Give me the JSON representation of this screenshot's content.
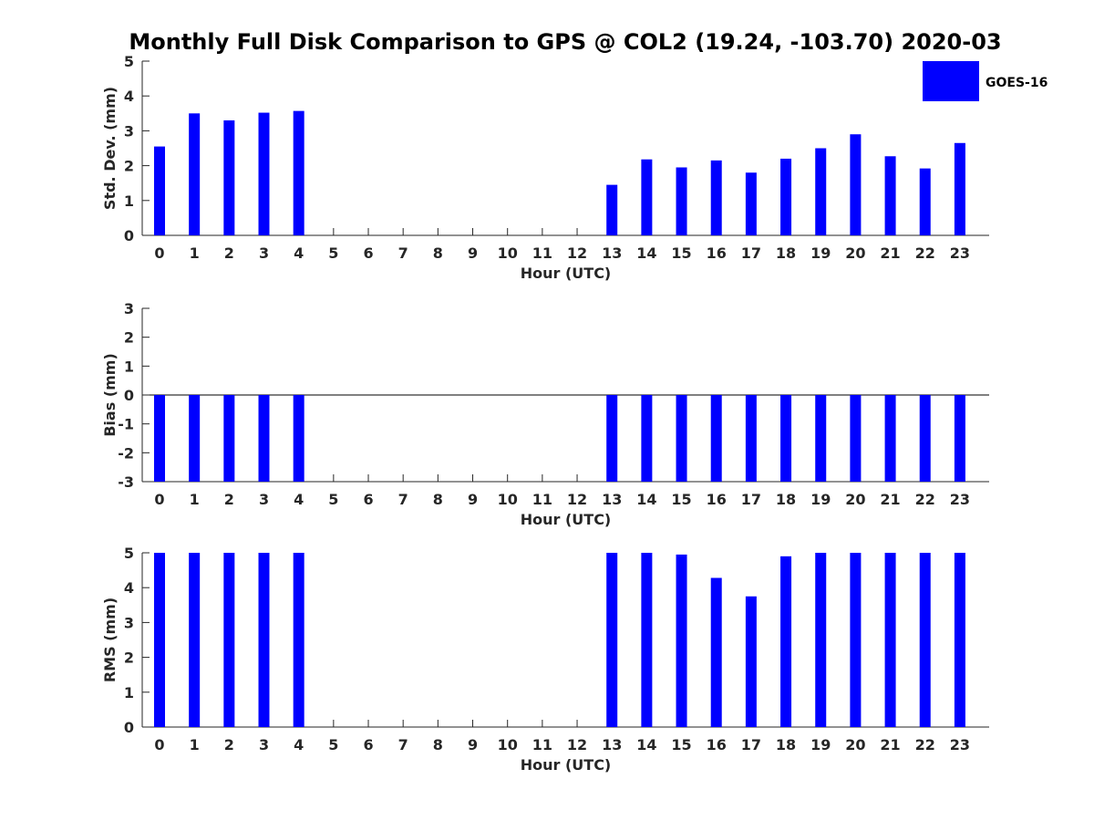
{
  "figure": {
    "title": "Monthly Full Disk Comparison to GPS @ COL2 (19.24, -103.70) 2020-03"
  },
  "legend": {
    "label": "GOES-16",
    "color": "#0000ff",
    "placement": "top-right"
  },
  "chart_data": [
    {
      "type": "bar",
      "name": "std-dev",
      "xlabel": "Hour (UTC)",
      "ylabel": "Std. Dev. (mm)",
      "ylim": [
        0,
        5
      ],
      "yticks": [
        0,
        1,
        2,
        3,
        4,
        5
      ],
      "categories": [
        "0",
        "1",
        "2",
        "3",
        "4",
        "5",
        "6",
        "7",
        "8",
        "9",
        "10",
        "11",
        "12",
        "13",
        "14",
        "15",
        "16",
        "17",
        "18",
        "19",
        "20",
        "21",
        "22",
        "23"
      ],
      "series": [
        {
          "name": "GOES-16",
          "values": [
            2.55,
            3.5,
            3.3,
            3.52,
            3.57,
            null,
            null,
            null,
            null,
            null,
            null,
            null,
            null,
            1.45,
            2.18,
            1.95,
            2.15,
            1.8,
            2.2,
            2.5,
            2.9,
            2.27,
            1.92,
            2.65
          ]
        }
      ]
    },
    {
      "type": "bar",
      "name": "bias",
      "xlabel": "Hour (UTC)",
      "ylabel": "Bias (mm)",
      "ylim": [
        -3,
        3
      ],
      "yticks": [
        -3,
        -2,
        -1,
        0,
        1,
        2,
        3
      ],
      "zero_line": true,
      "categories": [
        "0",
        "1",
        "2",
        "3",
        "4",
        "5",
        "6",
        "7",
        "8",
        "9",
        "10",
        "11",
        "12",
        "13",
        "14",
        "15",
        "16",
        "17",
        "18",
        "19",
        "20",
        "21",
        "22",
        "23"
      ],
      "series": [
        {
          "name": "GOES-16",
          "values": [
            -3,
            -3,
            -3,
            -3,
            -3,
            null,
            null,
            null,
            null,
            null,
            null,
            null,
            null,
            -3,
            -3,
            -3,
            -3,
            -3,
            -3,
            -3,
            -3,
            -3,
            -3,
            -3
          ]
        }
      ]
    },
    {
      "type": "bar",
      "name": "rms",
      "xlabel": "Hour (UTC)",
      "ylabel": "RMS (mm)",
      "ylim": [
        0,
        5
      ],
      "yticks": [
        0,
        1,
        2,
        3,
        4,
        5
      ],
      "categories": [
        "0",
        "1",
        "2",
        "3",
        "4",
        "5",
        "6",
        "7",
        "8",
        "9",
        "10",
        "11",
        "12",
        "13",
        "14",
        "15",
        "16",
        "17",
        "18",
        "19",
        "20",
        "21",
        "22",
        "23"
      ],
      "series": [
        {
          "name": "GOES-16",
          "values": [
            5,
            5,
            5,
            5,
            5,
            null,
            null,
            null,
            null,
            null,
            null,
            null,
            null,
            5,
            5,
            4.95,
            4.28,
            3.75,
            4.9,
            5,
            5,
            5,
            5,
            5
          ]
        }
      ]
    }
  ]
}
